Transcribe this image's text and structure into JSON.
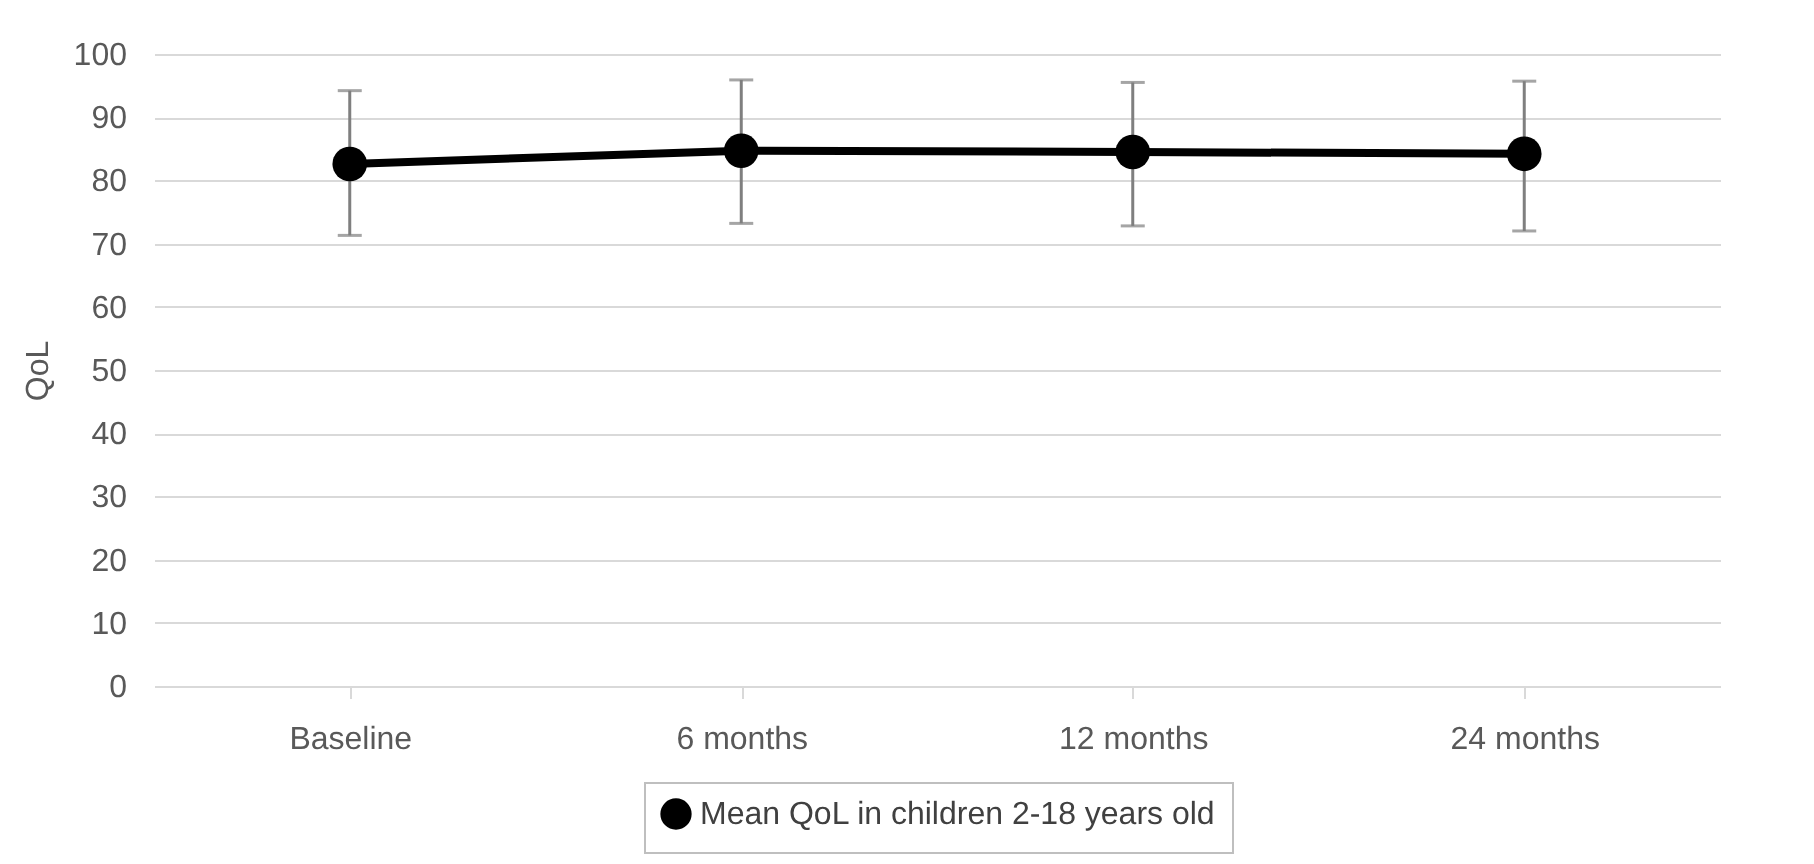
{
  "chart_data": {
    "type": "line",
    "ylabel": "QoL",
    "categories": [
      "Baseline",
      "6 months",
      "12 months",
      "24 months"
    ],
    "series": [
      {
        "name": "Mean QoL in children 2-18 years old",
        "color": "#000000",
        "values": [
          82.6,
          84.7,
          84.5,
          84.2
        ],
        "errors": [
          [
            71.3,
            94.2
          ],
          [
            73.2,
            95.9
          ],
          [
            72.8,
            95.5
          ],
          [
            72.0,
            95.7
          ]
        ]
      }
    ],
    "ylim": [
      0,
      100
    ],
    "yticks": [
      0,
      10,
      20,
      30,
      40,
      50,
      60,
      70,
      80,
      90,
      100
    ],
    "grid": "y",
    "legend": "bottom",
    "marker": "circle",
    "line_style": "solid"
  }
}
